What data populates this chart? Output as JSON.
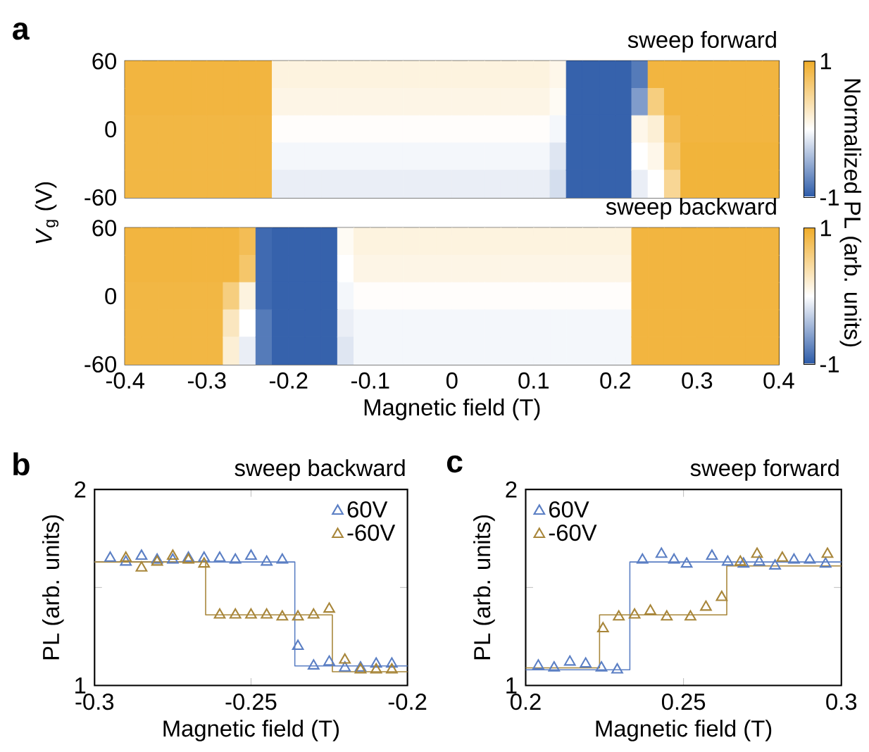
{
  "chart_data": [
    {
      "type": "heatmap",
      "title": "sweep forward",
      "annotations": [
        "a"
      ],
      "tick_labels": "y",
      "x": [
        -0.39,
        -0.37,
        -0.35,
        -0.33,
        -0.31,
        -0.29,
        -0.27,
        -0.25,
        -0.23,
        -0.21,
        -0.19,
        -0.17,
        -0.15,
        -0.13,
        -0.11,
        -0.09,
        -0.07,
        -0.05,
        -0.03,
        -0.01,
        0.01,
        0.03,
        0.05,
        0.07,
        0.09,
        0.11,
        0.13,
        0.15,
        0.17,
        0.19,
        0.21,
        0.23,
        0.25,
        0.27,
        0.29,
        0.31,
        0.33,
        0.35,
        0.37,
        0.39
      ],
      "y": [
        48,
        24,
        0,
        -24,
        -48
      ],
      "cells": [
        [
          0.9,
          0.9,
          0.9,
          0.9,
          0.9,
          0.9,
          0.9,
          0.9,
          0.9,
          0.15,
          0.15,
          0.15,
          0.15,
          0.15,
          0.15,
          0.15,
          0.15,
          0.15,
          0.15,
          0.15,
          0.15,
          0.15,
          0.15,
          0.15,
          0.15,
          0.15,
          0.1,
          -0.95,
          -0.95,
          -0.95,
          -0.95,
          -0.8,
          0.9,
          0.9,
          0.9,
          0.9,
          0.9,
          0.9,
          0.9,
          0.9
        ],
        [
          0.9,
          0.9,
          0.9,
          0.9,
          0.9,
          0.9,
          0.9,
          0.9,
          0.9,
          0.12,
          0.12,
          0.12,
          0.12,
          0.12,
          0.12,
          0.12,
          0.12,
          0.12,
          0.12,
          0.12,
          0.12,
          0.12,
          0.12,
          0.12,
          0.12,
          0.12,
          0.05,
          -0.95,
          -0.95,
          -0.95,
          -0.95,
          -0.6,
          0.6,
          0.9,
          0.9,
          0.9,
          0.9,
          0.9,
          0.9,
          0.9
        ],
        [
          0.88,
          0.88,
          0.88,
          0.88,
          0.88,
          0.88,
          0.88,
          0.88,
          0.88,
          0.02,
          0.02,
          0.02,
          0.02,
          0.02,
          0.02,
          0.02,
          0.02,
          0.02,
          0.02,
          0.02,
          0.02,
          0.02,
          0.02,
          0.02,
          0.02,
          0.02,
          -0.05,
          -0.95,
          -0.95,
          -0.95,
          -0.95,
          0.1,
          0.2,
          0.8,
          0.9,
          0.9,
          0.9,
          0.9,
          0.9,
          0.9
        ],
        [
          0.88,
          0.88,
          0.88,
          0.88,
          0.88,
          0.88,
          0.88,
          0.88,
          0.88,
          -0.05,
          -0.05,
          -0.05,
          -0.05,
          -0.05,
          -0.05,
          -0.05,
          -0.05,
          -0.05,
          -0.05,
          -0.05,
          -0.05,
          -0.05,
          -0.05,
          -0.05,
          -0.05,
          -0.05,
          -0.15,
          -0.95,
          -0.95,
          -0.95,
          -0.95,
          0,
          0.1,
          0.7,
          0.92,
          0.92,
          0.92,
          0.92,
          0.92,
          0.92
        ],
        [
          0.88,
          0.88,
          0.88,
          0.88,
          0.88,
          0.88,
          0.88,
          0.88,
          0.88,
          -0.1,
          -0.1,
          -0.1,
          -0.1,
          -0.1,
          -0.1,
          -0.1,
          -0.1,
          -0.1,
          -0.1,
          -0.1,
          -0.1,
          -0.1,
          -0.1,
          -0.1,
          -0.1,
          -0.1,
          -0.2,
          -0.95,
          -0.95,
          -0.95,
          -0.95,
          -0.1,
          0,
          0.5,
          0.92,
          0.92,
          0.92,
          0.92,
          0.92,
          0.92
        ]
      ],
      "xlim": [
        -0.4,
        0.4
      ],
      "xticks": [
        -0.4,
        -0.3,
        -0.2,
        -0.1,
        0,
        0.1,
        0.2,
        0.3,
        0.4
      ],
      "ylim": [
        -60,
        60
      ],
      "yticks": [
        -60,
        {
          "value": -30,
          "label": null
        },
        0,
        {
          "value": 30,
          "label": null
        },
        60
      ],
      "clim": [
        -1,
        1
      ],
      "cticks": [
        -1,
        1
      ],
      "clabel": "Normalized PL (arb. units)"
    },
    {
      "type": "heatmap",
      "title": "sweep backward",
      "xlabel": "Magnetic field (T)",
      "ylabel": "*V*$_{g}$ (V)",
      "x": [
        -0.39,
        -0.37,
        -0.35,
        -0.33,
        -0.31,
        -0.29,
        -0.27,
        -0.25,
        -0.23,
        -0.21,
        -0.19,
        -0.17,
        -0.15,
        -0.13,
        -0.11,
        -0.09,
        -0.07,
        -0.05,
        -0.03,
        -0.01,
        0.01,
        0.03,
        0.05,
        0.07,
        0.09,
        0.11,
        0.13,
        0.15,
        0.17,
        0.19,
        0.21,
        0.23,
        0.25,
        0.27,
        0.29,
        0.31,
        0.33,
        0.35,
        0.37,
        0.39
      ],
      "y": [
        48,
        24,
        0,
        -24,
        -48
      ],
      "cells": [
        [
          0.9,
          0.9,
          0.9,
          0.9,
          0.9,
          0.9,
          0.9,
          0.8,
          -0.9,
          -0.95,
          -0.95,
          -0.95,
          -0.95,
          0.05,
          0.15,
          0.15,
          0.15,
          0.15,
          0.15,
          0.15,
          0.15,
          0.15,
          0.15,
          0.15,
          0.15,
          0.15,
          0.15,
          0.15,
          0.15,
          0.15,
          0.15,
          0.9,
          0.9,
          0.9,
          0.9,
          0.9,
          0.9,
          0.9,
          0.9,
          0.9
        ],
        [
          0.9,
          0.9,
          0.9,
          0.9,
          0.9,
          0.9,
          0.9,
          0.7,
          -0.9,
          -0.95,
          -0.95,
          -0.95,
          -0.95,
          0,
          0.12,
          0.12,
          0.12,
          0.12,
          0.12,
          0.12,
          0.12,
          0.12,
          0.12,
          0.12,
          0.12,
          0.12,
          0.12,
          0.12,
          0.12,
          0.12,
          0.12,
          0.9,
          0.9,
          0.9,
          0.9,
          0.9,
          0.9,
          0.9,
          0.9,
          0.9
        ],
        [
          0.88,
          0.88,
          0.88,
          0.88,
          0.88,
          0.88,
          0.6,
          0.15,
          -0.9,
          -0.95,
          -0.95,
          -0.95,
          -0.95,
          -0.05,
          0.02,
          0.02,
          0.02,
          0.02,
          0.02,
          0.02,
          0.02,
          0.02,
          0.02,
          0.02,
          0.02,
          0.02,
          0.02,
          0.02,
          0.02,
          0.02,
          0.02,
          0.9,
          0.9,
          0.9,
          0.9,
          0.9,
          0.9,
          0.9,
          0.9,
          0.9
        ],
        [
          0.88,
          0.88,
          0.88,
          0.88,
          0.88,
          0.88,
          0.3,
          0,
          -0.8,
          -0.95,
          -0.95,
          -0.95,
          -0.95,
          -0.1,
          -0.05,
          -0.05,
          -0.05,
          -0.05,
          -0.05,
          -0.05,
          -0.05,
          -0.05,
          -0.05,
          -0.05,
          -0.05,
          -0.05,
          -0.05,
          -0.05,
          -0.05,
          -0.05,
          -0.05,
          0.9,
          0.9,
          0.9,
          0.9,
          0.9,
          0.9,
          0.9,
          0.9,
          0.9
        ],
        [
          0.88,
          0.88,
          0.88,
          0.88,
          0.88,
          0.88,
          0.2,
          -0.1,
          -0.8,
          -0.95,
          -0.95,
          -0.95,
          -0.95,
          -0.15,
          -0.05,
          -0.05,
          -0.05,
          -0.05,
          -0.05,
          -0.05,
          -0.05,
          -0.05,
          -0.05,
          -0.05,
          -0.05,
          -0.05,
          -0.05,
          -0.05,
          -0.05,
          -0.05,
          -0.05,
          0.9,
          0.9,
          0.9,
          0.9,
          0.9,
          0.9,
          0.9,
          0.9,
          0.9
        ]
      ],
      "xlim": [
        -0.4,
        0.4
      ],
      "xticks": [
        -0.4,
        -0.3,
        -0.2,
        -0.1,
        0,
        0.1,
        0.2,
        0.3,
        0.4
      ],
      "ylim": [
        -60,
        60
      ],
      "yticks": [
        -60,
        {
          "value": -30,
          "label": null
        },
        0,
        {
          "value": 30,
          "label": null
        },
        60
      ],
      "clim": [
        -1,
        1
      ],
      "cticks": [
        -1,
        1
      ]
    },
    {
      "type": "scatter",
      "title": "sweep backward",
      "annotations": [
        "b"
      ],
      "xlabel": "Magnetic field (T)",
      "ylabel": "PL (arb. units)",
      "legend": "top right",
      "marker": "triangle",
      "xlim": [
        -0.3,
        -0.2
      ],
      "xticks": [
        -0.3,
        -0.25,
        -0.2
      ],
      "ylim": [
        1,
        2
      ],
      "yticks": [
        1,
        {
          "value": 1.5,
          "label": null
        },
        2
      ],
      "series": [
        {
          "name": "60V",
          "color": "#5b7fc4",
          "x": [
            -0.295,
            -0.29,
            -0.285,
            -0.28,
            -0.275,
            -0.27,
            -0.265,
            -0.26,
            -0.255,
            -0.25,
            -0.245,
            -0.24,
            -0.235,
            -0.23,
            -0.225,
            -0.22,
            -0.215,
            -0.21,
            -0.205
          ],
          "values": [
            1.65,
            1.63,
            1.66,
            1.64,
            1.64,
            1.65,
            1.65,
            1.65,
            1.64,
            1.66,
            1.63,
            1.64,
            1.2,
            1.1,
            1.12,
            1.09,
            1.09,
            1.11,
            1.11
          ]
        },
        {
          "name": "-60V",
          "color": "#a8863a",
          "x": [
            -0.29,
            -0.285,
            -0.28,
            -0.275,
            -0.27,
            -0.265,
            -0.26,
            -0.255,
            -0.25,
            -0.245,
            -0.24,
            -0.235,
            -0.23,
            -0.225,
            -0.22,
            -0.215,
            -0.21,
            -0.205
          ],
          "values": [
            1.65,
            1.6,
            1.63,
            1.66,
            1.64,
            1.62,
            1.36,
            1.36,
            1.36,
            1.36,
            1.35,
            1.35,
            1.36,
            1.39,
            1.13,
            1.08,
            1.08,
            1.08
          ]
        },
        {
          "type": "step",
          "marker": "none",
          "color": "#5b7fc4",
          "x": [
            -0.3,
            -0.236,
            -0.2
          ],
          "values": [
            1.63,
            1.1,
            1.1
          ]
        },
        {
          "type": "step",
          "marker": "none",
          "color": "#a8863a",
          "x": [
            -0.3,
            -0.2645,
            -0.224,
            -0.2
          ],
          "values": [
            1.63,
            1.36,
            1.07,
            1.07
          ]
        }
      ]
    },
    {
      "type": "scatter",
      "title": "sweep forward",
      "annotations": [
        "c"
      ],
      "xlabel": "Magnetic field (T)",
      "ylabel": "PL (arb. units)",
      "legend": "top left",
      "marker": "triangle",
      "xlim": [
        0.2,
        0.3
      ],
      "xticks": [
        0.2,
        0.25,
        0.3
      ],
      "ylim": [
        1,
        2
      ],
      "yticks": [
        1,
        {
          "value": 1.5,
          "label": null
        },
        2
      ],
      "series": [
        {
          "name": "60V",
          "color": "#5b7fc4",
          "x": [
            0.204,
            0.209,
            0.214,
            0.219,
            0.224,
            0.229,
            0.237,
            0.243,
            0.247,
            0.251,
            0.259,
            0.264,
            0.269,
            0.274,
            0.279,
            0.285,
            0.29,
            0.295
          ],
          "values": [
            1.1,
            1.09,
            1.12,
            1.11,
            1.09,
            1.08,
            1.64,
            1.67,
            1.64,
            1.62,
            1.66,
            1.63,
            1.62,
            1.63,
            1.61,
            1.64,
            1.64,
            1.62
          ]
        },
        {
          "name": "-60V",
          "color": "#a8863a",
          "x": [
            0.2245,
            0.2295,
            0.2345,
            0.2395,
            0.2447,
            0.2522,
            0.2571,
            0.2621,
            0.268,
            0.2733,
            0.2813,
            0.2956
          ],
          "values": [
            1.29,
            1.35,
            1.36,
            1.38,
            1.35,
            1.35,
            1.4,
            1.45,
            1.63,
            1.67,
            1.65,
            1.67
          ]
        },
        {
          "type": "step",
          "marker": "none",
          "color": "#5b7fc4",
          "x": [
            0.2,
            0.233,
            0.3
          ],
          "values": [
            1.08,
            1.63,
            1.63
          ]
        },
        {
          "type": "step",
          "marker": "none",
          "color": "#a8863a",
          "x": [
            0.2,
            0.2234,
            0.2637,
            0.3
          ],
          "values": [
            1.09,
            1.36,
            1.61,
            1.61
          ]
        }
      ]
    }
  ]
}
